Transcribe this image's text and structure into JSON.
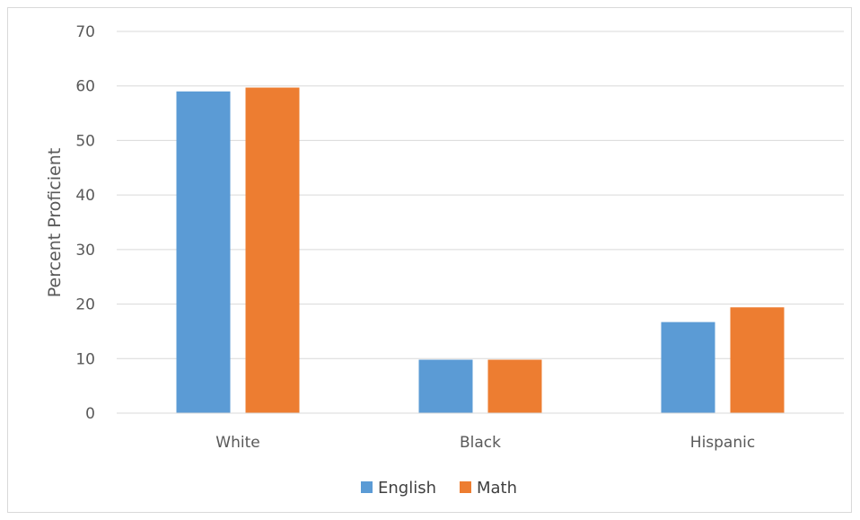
{
  "chart_data": {
    "type": "bar",
    "title": "",
    "xlabel": "",
    "ylabel": "Percent Proficient",
    "categories": [
      "White",
      "Black",
      "Hispanic"
    ],
    "series": [
      {
        "name": "English",
        "values": [
          59,
          9.8,
          16.7
        ],
        "color": "#5b9bd5"
      },
      {
        "name": "Math",
        "values": [
          59.7,
          9.8,
          19.4
        ],
        "color": "#ed7d31"
      }
    ],
    "ylim": [
      0,
      70
    ],
    "yticks": [
      0,
      10,
      20,
      30,
      40,
      50,
      60,
      70
    ],
    "grid": true,
    "legend_position": "bottom"
  }
}
